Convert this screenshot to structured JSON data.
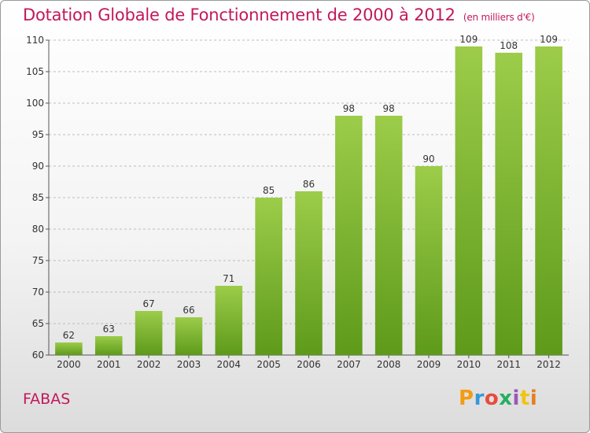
{
  "header": {
    "title": "Dotation Globale de Fonctionnement de 2000 à 2012",
    "units": "(en milliers d'€)"
  },
  "footer": {
    "commune": "FABAS",
    "brand": "Proxiti",
    "brand_colors": [
      "#f39c12",
      "#3498db",
      "#e74c3c",
      "#27ae60",
      "#9b59b6",
      "#f1c40f",
      "#e67e22"
    ]
  },
  "colors": {
    "bar_top": "#9ccc4a",
    "bar_bottom": "#5e9a1a",
    "accent": "#c2185b",
    "grid": "#bdbdbd",
    "axis": "#555555"
  },
  "chart_data": {
    "type": "bar",
    "categories": [
      "2000",
      "2001",
      "2002",
      "2003",
      "2004",
      "2005",
      "2006",
      "2007",
      "2008",
      "2009",
      "2010",
      "2011",
      "2012"
    ],
    "values": [
      62,
      63,
      67,
      66,
      71,
      85,
      86,
      98,
      98,
      90,
      109,
      108,
      109
    ],
    "ylim": [
      60,
      110
    ],
    "yticks": [
      60,
      65,
      70,
      75,
      80,
      85,
      90,
      95,
      100,
      105,
      110
    ],
    "grid": true
  }
}
